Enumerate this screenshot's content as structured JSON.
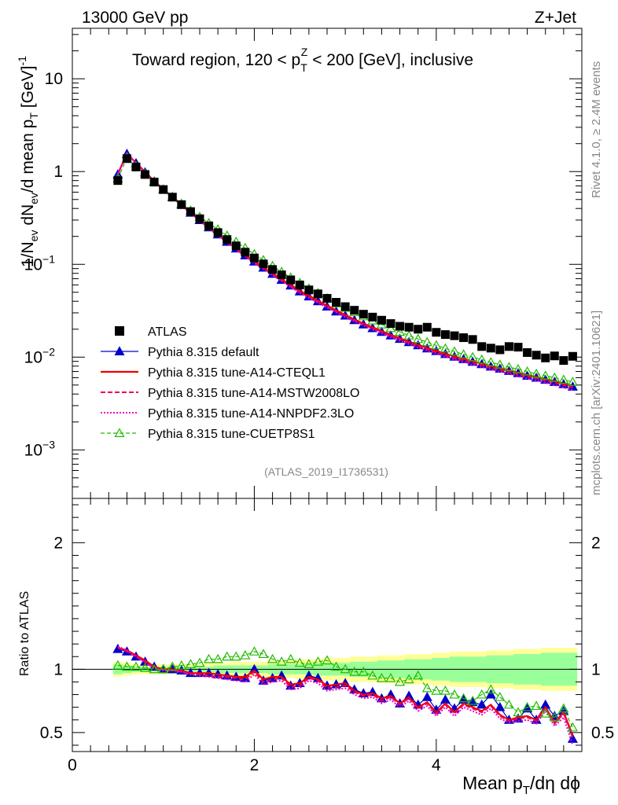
{
  "header": {
    "energy": "13000 GeV pp",
    "process": "Z+Jet",
    "title": "Toward region, 120 < p",
    "title_sup": "Z",
    "title_sub": "T",
    "title_tail": " < 200 [GeV], inclusive",
    "ref_label": "(ATLAS_2019_I1736531)",
    "side_rivet": "Rivet 4.1.0, ≥ 2.4M events",
    "side_mcplots": "mcplots.cern.ch [arXiv:2401.10621]"
  },
  "labels": {
    "ylabel_top": "1/N_ev dN_ev/d mean p_T [GeV]^-1",
    "ylabel_ratio": "Ratio to ATLAS",
    "xlabel": "Mean p_T/dη dϕ"
  },
  "colors": {
    "atlas": "#000000",
    "default": "#0000cc",
    "cteql1": "#ee0000",
    "mstw": "#ee0055",
    "nnpdf": "#ee00cc",
    "cuetp8s1": "#22bb00",
    "band_inner": "#99ff99",
    "band_outer": "#ffff99"
  },
  "chart_data": [
    {
      "type": "line",
      "panel": "main",
      "title": "Toward region, 120 < p_T^Z < 200 [GeV], inclusive",
      "xlabel": "Mean p_T/dη dϕ",
      "ylabel": "1/N_ev dN_ev/d mean p_T [GeV]^-1",
      "xlim": [
        0,
        5.6
      ],
      "ylim": [
        0.0003,
        35
      ],
      "yscale": "log",
      "x_ticks": [
        "0",
        "2",
        "4"
      ],
      "y_ticks": [
        "10^-3",
        "10^-2",
        "10^-1",
        "1",
        "10"
      ],
      "x": [
        0.5,
        0.6,
        0.7,
        0.8,
        0.9,
        1.0,
        1.1,
        1.2,
        1.3,
        1.4,
        1.5,
        1.6,
        1.7,
        1.8,
        1.9,
        2.0,
        2.1,
        2.2,
        2.3,
        2.4,
        2.5,
        2.6,
        2.7,
        2.8,
        2.9,
        3.0,
        3.1,
        3.2,
        3.3,
        3.4,
        3.5,
        3.6,
        3.7,
        3.8,
        3.9,
        4.0,
        4.1,
        4.2,
        4.3,
        4.4,
        4.5,
        4.6,
        4.7,
        4.8,
        4.9,
        5.0,
        5.1,
        5.2,
        5.3,
        5.4,
        5.5
      ],
      "series": [
        {
          "name": "ATLAS",
          "style": "square",
          "values": [
            0.8,
            1.38,
            1.12,
            0.93,
            0.77,
            0.64,
            0.53,
            0.44,
            0.37,
            0.31,
            0.26,
            0.22,
            0.185,
            0.158,
            0.135,
            0.117,
            0.101,
            0.088,
            0.077,
            0.068,
            0.06,
            0.053,
            0.048,
            0.043,
            0.039,
            0.035,
            0.032,
            0.029,
            0.027,
            0.025,
            0.023,
            0.0215,
            0.021,
            0.02,
            0.021,
            0.0185,
            0.0175,
            0.017,
            0.0162,
            0.0155,
            0.013,
            0.0125,
            0.012,
            0.013,
            0.0128,
            0.0112,
            0.0105,
            0.0098,
            0.0103,
            0.0092,
            0.0102
          ]
        },
        {
          "name": "Pythia 8.315 default",
          "style": "line-triangle",
          "values": [
            0.93,
            1.55,
            1.23,
            0.98,
            0.78,
            0.64,
            0.53,
            0.44,
            0.36,
            0.3,
            0.25,
            0.21,
            0.175,
            0.148,
            0.125,
            0.107,
            0.092,
            0.079,
            0.068,
            0.059,
            0.051,
            0.045,
            0.04,
            0.035,
            0.031,
            0.028,
            0.025,
            0.0225,
            0.0205,
            0.0187,
            0.0171,
            0.0157,
            0.0145,
            0.0134,
            0.0124,
            0.0116,
            0.0108,
            0.0101,
            0.0095,
            0.0089,
            0.0084,
            0.0079,
            0.0075,
            0.0071,
            0.0067,
            0.0063,
            0.006,
            0.0057,
            0.0054,
            0.0051,
            0.0048
          ]
        },
        {
          "name": "Pythia 8.315 tune-A14-CTEQL1",
          "style": "solid",
          "values": [
            0.94,
            1.57,
            1.24,
            0.99,
            0.79,
            0.645,
            0.535,
            0.44,
            0.362,
            0.3,
            0.25,
            0.21,
            0.176,
            0.149,
            0.126,
            0.108,
            0.093,
            0.08,
            0.069,
            0.06,
            0.052,
            0.046,
            0.0405,
            0.036,
            0.032,
            0.0285,
            0.0255,
            0.023,
            0.021,
            0.0191,
            0.0174,
            0.016,
            0.0147,
            0.0136,
            0.0126,
            0.0117,
            0.0109,
            0.0102,
            0.0096,
            0.009,
            0.0085,
            0.008,
            0.0076,
            0.0072,
            0.0068,
            0.0064,
            0.0061,
            0.0058,
            0.0055,
            0.0052,
            0.0049
          ]
        },
        {
          "name": "Pythia 8.315 tune-A14-MSTW2008LO",
          "style": "dashed",
          "values": [
            0.94,
            1.56,
            1.23,
            0.98,
            0.78,
            0.64,
            0.53,
            0.435,
            0.358,
            0.297,
            0.247,
            0.207,
            0.173,
            0.146,
            0.123,
            0.105,
            0.09,
            0.078,
            0.067,
            0.058,
            0.05,
            0.0445,
            0.0395,
            0.035,
            0.031,
            0.0278,
            0.025,
            0.0225,
            0.0205,
            0.0186,
            0.017,
            0.0156,
            0.0143,
            0.0132,
            0.0122,
            0.0113,
            0.0105,
            0.0098,
            0.0092,
            0.0087,
            0.0082,
            0.0077,
            0.0073,
            0.0069,
            0.0065,
            0.0062,
            0.0059,
            0.0056,
            0.0053,
            0.005,
            0.0047
          ]
        },
        {
          "name": "Pythia 8.315 tune-A14-NNPDF2.3LO",
          "style": "dotted",
          "values": [
            0.95,
            1.58,
            1.24,
            0.98,
            0.78,
            0.635,
            0.525,
            0.43,
            0.355,
            0.294,
            0.244,
            0.204,
            0.171,
            0.144,
            0.121,
            0.103,
            0.089,
            0.076,
            0.066,
            0.057,
            0.049,
            0.0435,
            0.0385,
            0.034,
            0.0302,
            0.027,
            0.0242,
            0.0218,
            0.0198,
            0.018,
            0.0164,
            0.015,
            0.0138,
            0.0127,
            0.0117,
            0.0109,
            0.0101,
            0.0094,
            0.0088,
            0.0083,
            0.0078,
            0.0074,
            0.007,
            0.0066,
            0.0062,
            0.0059,
            0.0056,
            0.0053,
            0.005,
            0.0047,
            0.0044
          ]
        },
        {
          "name": "Pythia 8.315 tune-CUETP8S1",
          "style": "dashed-triangle",
          "values": [
            0.84,
            1.4,
            1.14,
            0.94,
            0.77,
            0.64,
            0.535,
            0.45,
            0.38,
            0.325,
            0.278,
            0.238,
            0.204,
            0.175,
            0.15,
            0.129,
            0.111,
            0.096,
            0.083,
            0.072,
            0.063,
            0.055,
            0.049,
            0.043,
            0.038,
            0.034,
            0.0305,
            0.0275,
            0.0248,
            0.0225,
            0.0205,
            0.0187,
            0.0171,
            0.0157,
            0.0145,
            0.0134,
            0.0124,
            0.0115,
            0.0107,
            0.01,
            0.0094,
            0.0088,
            0.0083,
            0.0078,
            0.0074,
            0.007,
            0.0066,
            0.0063,
            0.006,
            0.0057,
            0.0054
          ]
        }
      ]
    },
    {
      "type": "line",
      "panel": "ratio",
      "ylabel": "Ratio to ATLAS",
      "xlabel": "Mean p_T/dη dϕ",
      "xlim": [
        0,
        5.6
      ],
      "ylim": [
        0.35,
        2.35
      ],
      "x_ticks": [
        "0",
        "2",
        "4"
      ],
      "y_ticks": [
        "0.5",
        "1",
        "2"
      ],
      "x": [
        0.5,
        0.6,
        0.7,
        0.8,
        0.9,
        1.0,
        1.1,
        1.2,
        1.3,
        1.4,
        1.5,
        1.6,
        1.7,
        1.8,
        1.9,
        2.0,
        2.1,
        2.2,
        2.3,
        2.4,
        2.5,
        2.6,
        2.7,
        2.8,
        2.9,
        3.0,
        3.1,
        3.2,
        3.3,
        3.4,
        3.5,
        3.6,
        3.7,
        3.8,
        3.9,
        4.0,
        4.1,
        4.2,
        4.3,
        4.4,
        4.5,
        4.6,
        4.7,
        4.8,
        4.9,
        5.0,
        5.1,
        5.2,
        5.3,
        5.4,
        5.5
      ],
      "band_inner_halfwidth": [
        0.04,
        0.03,
        0.02,
        0.02,
        0.02,
        0.02,
        0.02,
        0.02,
        0.02,
        0.02,
        0.02,
        0.03,
        0.03,
        0.03,
        0.03,
        0.03,
        0.03,
        0.04,
        0.04,
        0.04,
        0.04,
        0.04,
        0.05,
        0.05,
        0.05,
        0.05,
        0.06,
        0.06,
        0.06,
        0.07,
        0.07,
        0.07,
        0.08,
        0.08,
        0.08,
        0.09,
        0.09,
        0.1,
        0.1,
        0.1,
        0.1,
        0.11,
        0.11,
        0.11,
        0.12,
        0.12,
        0.12,
        0.13,
        0.13,
        0.13,
        0.13
      ],
      "band_outer_halfwidth": [
        0.06,
        0.05,
        0.04,
        0.04,
        0.04,
        0.04,
        0.04,
        0.04,
        0.04,
        0.04,
        0.05,
        0.05,
        0.05,
        0.06,
        0.06,
        0.06,
        0.06,
        0.07,
        0.07,
        0.07,
        0.08,
        0.08,
        0.08,
        0.09,
        0.09,
        0.09,
        0.1,
        0.1,
        0.1,
        0.11,
        0.11,
        0.11,
        0.12,
        0.12,
        0.12,
        0.13,
        0.13,
        0.14,
        0.14,
        0.14,
        0.14,
        0.15,
        0.15,
        0.15,
        0.16,
        0.16,
        0.16,
        0.17,
        0.17,
        0.17,
        0.17
      ],
      "series": [
        {
          "name": "Pythia 8.315 default",
          "values": [
            1.16,
            1.14,
            1.1,
            1.06,
            1.02,
            1.0,
            1.0,
            0.99,
            0.97,
            0.97,
            0.97,
            0.96,
            0.95,
            0.94,
            0.93,
            1.0,
            0.91,
            0.93,
            0.95,
            0.87,
            0.89,
            0.95,
            0.93,
            0.87,
            0.88,
            0.89,
            0.84,
            0.81,
            0.82,
            0.77,
            0.8,
            0.73,
            0.79,
            0.72,
            0.78,
            0.68,
            0.76,
            0.69,
            0.76,
            0.74,
            0.72,
            0.8,
            0.7,
            0.6,
            0.61,
            0.69,
            0.6,
            0.72,
            0.63,
            0.67,
            0.45
          ]
        },
        {
          "name": "Pythia 8.315 tune-A14-CTEQL1",
          "values": [
            1.17,
            1.15,
            1.11,
            1.07,
            1.02,
            1.0,
            1.0,
            0.99,
            0.97,
            0.97,
            0.97,
            0.96,
            0.95,
            0.94,
            0.94,
            0.99,
            0.92,
            0.94,
            0.94,
            0.88,
            0.89,
            0.94,
            0.92,
            0.87,
            0.88,
            0.89,
            0.83,
            0.8,
            0.81,
            0.77,
            0.79,
            0.73,
            0.78,
            0.7,
            0.74,
            0.66,
            0.73,
            0.66,
            0.73,
            0.7,
            0.67,
            0.72,
            0.64,
            0.6,
            0.62,
            0.63,
            0.6,
            0.7,
            0.58,
            0.66,
            0.48
          ]
        },
        {
          "name": "Pythia 8.315 tune-A14-MSTW2008LO",
          "values": [
            1.17,
            1.14,
            1.1,
            1.06,
            1.01,
            1.0,
            0.99,
            0.98,
            0.96,
            0.96,
            0.95,
            0.94,
            0.94,
            0.93,
            0.92,
            0.98,
            0.9,
            0.92,
            0.93,
            0.86,
            0.87,
            0.93,
            0.91,
            0.85,
            0.86,
            0.87,
            0.82,
            0.79,
            0.8,
            0.75,
            0.78,
            0.72,
            0.77,
            0.69,
            0.73,
            0.65,
            0.72,
            0.65,
            0.72,
            0.69,
            0.66,
            0.71,
            0.63,
            0.59,
            0.61,
            0.62,
            0.59,
            0.69,
            0.57,
            0.65,
            0.46
          ]
        },
        {
          "name": "Pythia 8.315 tune-A14-NNPDF2.3LO",
          "values": [
            1.18,
            1.15,
            1.1,
            1.05,
            1.01,
            0.99,
            0.99,
            0.98,
            0.96,
            0.95,
            0.94,
            0.93,
            0.92,
            0.91,
            0.9,
            0.96,
            0.88,
            0.9,
            0.91,
            0.84,
            0.85,
            0.91,
            0.89,
            0.83,
            0.84,
            0.85,
            0.8,
            0.77,
            0.78,
            0.73,
            0.76,
            0.7,
            0.75,
            0.67,
            0.71,
            0.63,
            0.7,
            0.63,
            0.7,
            0.67,
            0.64,
            0.69,
            0.61,
            0.58,
            0.59,
            0.6,
            0.57,
            0.67,
            0.55,
            0.62,
            0.4
          ]
        },
        {
          "name": "Pythia 8.315 tune-CUETP8S1",
          "values": [
            1.03,
            1.02,
            1.02,
            1.01,
            1.0,
            1.0,
            1.02,
            1.03,
            1.04,
            1.05,
            1.08,
            1.08,
            1.1,
            1.1,
            1.11,
            1.14,
            1.12,
            1.08,
            1.06,
            1.08,
            1.05,
            1.04,
            1.06,
            1.07,
            1.02,
            1.0,
            0.98,
            0.98,
            0.95,
            0.93,
            0.93,
            0.9,
            0.92,
            0.95,
            0.85,
            0.83,
            0.83,
            0.8,
            0.77,
            0.75,
            0.8,
            0.84,
            0.78,
            0.72,
            0.66,
            0.7,
            0.71,
            0.65,
            0.62,
            0.69,
            0.54
          ]
        }
      ]
    }
  ],
  "legend": [
    {
      "label": "ATLAS",
      "color_key": "atlas",
      "style": "square"
    },
    {
      "label": "Pythia 8.315 default",
      "color_key": "default",
      "style": "line-triangle"
    },
    {
      "label": "Pythia 8.315 tune-A14-CTEQL1",
      "color_key": "cteql1",
      "style": "solid"
    },
    {
      "label": "Pythia 8.315 tune-A14-MSTW2008LO",
      "color_key": "mstw",
      "style": "dashed"
    },
    {
      "label": "Pythia 8.315 tune-A14-NNPDF2.3LO",
      "color_key": "nnpdf",
      "style": "dotted"
    },
    {
      "label": "Pythia 8.315 tune-CUETP8S1",
      "color_key": "cuetp8s1",
      "style": "dashed-triangle"
    }
  ]
}
